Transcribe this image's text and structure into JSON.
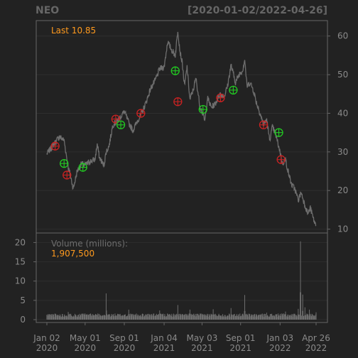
{
  "header": {
    "symbol": "NEO",
    "date_range": "[2020-01-02/2022-04-26]"
  },
  "colors": {
    "background": "#222222",
    "panel_border": "#666666",
    "grid": "#2e2e2e",
    "axis_text": "#8a8a8a",
    "price_line": "#6e6e6e",
    "last_label": "#ff9a1e",
    "buy_marker": "#22cc22",
    "sell_marker": "#cc2222",
    "volume_bar": "#6e6e6e"
  },
  "labels": {
    "last": "Last 10.85",
    "volume_title": "Volume (millions):",
    "volume_value": "1,907,500"
  },
  "chart_data": [
    {
      "type": "line",
      "title": "NEO",
      "subtitle": "[2020-01-02/2022-04-26]",
      "y_axis_position": "right",
      "ylim": [
        9,
        64
      ],
      "yticks": [
        10,
        20,
        30,
        40,
        50,
        60
      ],
      "x_range": [
        "2020-01-02",
        "2022-04-26"
      ],
      "x_tick_labels": [
        {
          "date": "2020-01-02",
          "line1": "Jan 02",
          "line2": "2020"
        },
        {
          "date": "2020-05-01",
          "line1": "May 01",
          "line2": "2020"
        },
        {
          "date": "2020-09-01",
          "line1": "Sep 01",
          "line2": "2020"
        },
        {
          "date": "2021-01-04",
          "line1": "Jan 04",
          "line2": "2021"
        },
        {
          "date": "2021-05-03",
          "line1": "May 03",
          "line2": "2021"
        },
        {
          "date": "2021-09-01",
          "line1": "Sep 01",
          "line2": "2021"
        },
        {
          "date": "2022-01-03",
          "line1": "Jan 03",
          "line2": "2022"
        },
        {
          "date": "2022-04-26",
          "line1": "Apr 26",
          "line2": "2022"
        }
      ],
      "series": [
        {
          "x": [
            "2020-01-02",
            "2020-01-20",
            "2020-02-10",
            "2020-02-25",
            "2020-03-09",
            "2020-03-18",
            "2020-03-25",
            "2020-04-06",
            "2020-04-20",
            "2020-05-01",
            "2020-05-15",
            "2020-06-01",
            "2020-06-08",
            "2020-06-15",
            "2020-06-29",
            "2020-07-06",
            "2020-07-15",
            "2020-07-27",
            "2020-08-10",
            "2020-08-24",
            "2020-09-01",
            "2020-09-15",
            "2020-09-28",
            "2020-10-12",
            "2020-10-26",
            "2020-11-09",
            "2020-11-23",
            "2020-12-07",
            "2020-12-21",
            "2021-01-04",
            "2021-01-15",
            "2021-01-27",
            "2021-02-08",
            "2021-02-16",
            "2021-02-23",
            "2021-03-02",
            "2021-03-09",
            "2021-03-17",
            "2021-03-26",
            "2021-04-05",
            "2021-04-14",
            "2021-04-26",
            "2021-05-03",
            "2021-05-12",
            "2021-05-20",
            "2021-06-01",
            "2021-06-14",
            "2021-06-28",
            "2021-07-12",
            "2021-07-22",
            "2021-08-02",
            "2021-08-16",
            "2021-08-30",
            "2021-09-07",
            "2021-09-14",
            "2021-09-21",
            "2021-10-01",
            "2021-10-11",
            "2021-10-20",
            "2021-11-01",
            "2021-11-12",
            "2021-11-22",
            "2021-12-01",
            "2021-12-10",
            "2021-12-20",
            "2022-01-03",
            "2022-01-10",
            "2022-01-20",
            "2022-01-28",
            "2022-02-08",
            "2022-02-18",
            "2022-03-01",
            "2022-03-10",
            "2022-03-21",
            "2022-03-31",
            "2022-04-08",
            "2022-04-18",
            "2022-04-26"
          ],
          "values": [
            29.5,
            31.5,
            34.0,
            33.0,
            26.0,
            23.0,
            20.5,
            25.0,
            27.0,
            26.5,
            27.5,
            28.0,
            32.0,
            28.5,
            26.5,
            30.0,
            31.5,
            37.0,
            38.0,
            39.5,
            40.5,
            37.5,
            35.5,
            38.0,
            40.0,
            43.0,
            46.5,
            48.5,
            51.5,
            52.0,
            58.5,
            56.5,
            55.0,
            61.5,
            56.0,
            53.0,
            47.0,
            52.0,
            43.5,
            46.0,
            49.0,
            42.0,
            40.5,
            38.0,
            44.0,
            41.5,
            42.5,
            45.0,
            44.5,
            47.0,
            52.5,
            48.0,
            50.5,
            51.0,
            54.0,
            47.0,
            48.0,
            46.0,
            43.0,
            40.0,
            37.0,
            38.5,
            33.0,
            36.5,
            34.5,
            30.0,
            27.0,
            28.0,
            25.0,
            21.5,
            20.5,
            17.5,
            19.5,
            16.5,
            14.0,
            15.5,
            12.5,
            10.85
          ]
        }
      ],
      "buy_signals": [
        {
          "x": "2020-02-25",
          "y": 27.0
        },
        {
          "x": "2020-04-24",
          "y": 26.0
        },
        {
          "x": "2020-08-21",
          "y": 37.0
        },
        {
          "x": "2021-02-08",
          "y": 51.0
        },
        {
          "x": "2021-05-06",
          "y": 41.0
        },
        {
          "x": "2021-08-09",
          "y": 46.0
        },
        {
          "x": "2021-12-30",
          "y": 35.0
        }
      ],
      "sell_signals": [
        {
          "x": "2020-01-28",
          "y": 31.5
        },
        {
          "x": "2020-03-05",
          "y": 24.0
        },
        {
          "x": "2020-08-05",
          "y": 38.5
        },
        {
          "x": "2020-10-23",
          "y": 40.0
        },
        {
          "x": "2021-02-16",
          "y": 43.0
        },
        {
          "x": "2021-06-30",
          "y": 44.0
        },
        {
          "x": "2021-11-12",
          "y": 37.0
        },
        {
          "x": "2022-01-06",
          "y": 28.0
        }
      ]
    },
    {
      "type": "bar",
      "title": "Volume (millions):",
      "y_axis_position": "left",
      "ylim": [
        0,
        21
      ],
      "yticks": [
        0,
        5,
        10,
        15,
        20
      ],
      "baseline": 0.7,
      "series": [
        {
          "spikes": [
            {
              "x": "2020-03-09",
              "v": 2.0
            },
            {
              "x": "2020-06-10",
              "v": 1.6
            },
            {
              "x": "2020-07-06",
              "v": 6.8
            },
            {
              "x": "2020-09-15",
              "v": 2.6
            },
            {
              "x": "2020-12-21",
              "v": 2.4
            },
            {
              "x": "2021-02-16",
              "v": 3.8
            },
            {
              "x": "2021-03-26",
              "v": 2.6
            },
            {
              "x": "2021-06-07",
              "v": 2.7
            },
            {
              "x": "2021-08-02",
              "v": 3.0
            },
            {
              "x": "2021-09-14",
              "v": 6.4
            },
            {
              "x": "2021-11-22",
              "v": 1.8
            },
            {
              "x": "2022-01-20",
              "v": 2.1
            },
            {
              "x": "2022-03-01",
              "v": 2.8
            },
            {
              "x": "2022-03-08",
              "v": 20.3
            },
            {
              "x": "2022-03-15",
              "v": 6.5
            },
            {
              "x": "2022-03-22",
              "v": 3.2
            },
            {
              "x": "2022-04-05",
              "v": 2.6
            },
            {
              "x": "2022-04-26",
              "v": 1.9
            }
          ]
        }
      ]
    }
  ]
}
